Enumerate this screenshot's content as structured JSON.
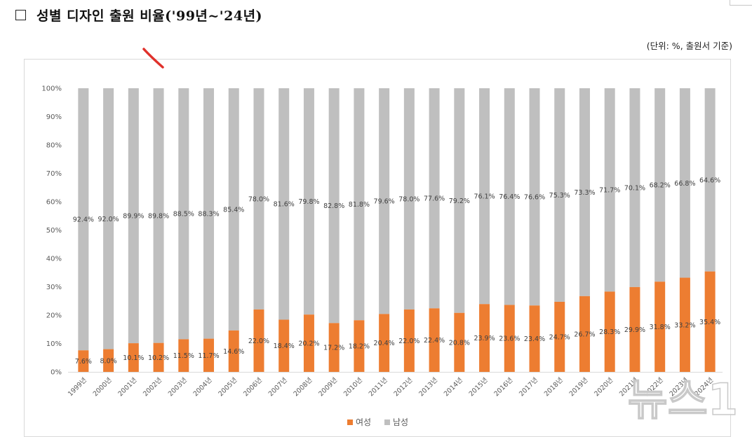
{
  "title": "성별 디자인 출원 비율('99년~'24년)",
  "unit_note": "(단위: %, 출원서 기준)",
  "watermark": "뉴스1",
  "colors": {
    "female": "#ED7D31",
    "male": "#BFBFBF",
    "annotation": "#E0312B"
  },
  "chart_data": {
    "type": "bar",
    "stacked": true,
    "categories": [
      "1999년",
      "2000년",
      "2001년",
      "2002년",
      "2003년",
      "2004년",
      "2005년",
      "2006년",
      "2007년",
      "2008년",
      "2009년",
      "2010년",
      "2011년",
      "2012년",
      "2013년",
      "2014년",
      "2015년",
      "2016년",
      "2017년",
      "2018년",
      "2019년",
      "2020년",
      "2021년",
      "2022년",
      "2023년",
      "2024년"
    ],
    "series": [
      {
        "name": "여성",
        "values": [
          7.6,
          8.0,
          10.1,
          10.2,
          11.5,
          11.7,
          14.6,
          22.0,
          18.4,
          20.2,
          17.2,
          18.2,
          20.4,
          22.0,
          22.4,
          20.8,
          23.9,
          23.6,
          23.4,
          24.7,
          26.7,
          28.3,
          29.9,
          31.8,
          33.2,
          35.4
        ]
      },
      {
        "name": "남성",
        "values": [
          92.4,
          92.0,
          89.9,
          89.8,
          88.5,
          88.3,
          85.4,
          78.0,
          81.6,
          79.8,
          82.8,
          81.8,
          79.6,
          78.0,
          77.6,
          79.2,
          76.1,
          76.4,
          76.6,
          75.3,
          73.3,
          71.7,
          70.1,
          68.2,
          66.8,
          64.6
        ]
      }
    ],
    "yticks": [
      "0%",
      "10%",
      "20%",
      "30%",
      "40%",
      "50%",
      "60%",
      "70%",
      "80%",
      "90%",
      "100%"
    ],
    "ylim": [
      0,
      100
    ],
    "legend": "bottom"
  }
}
